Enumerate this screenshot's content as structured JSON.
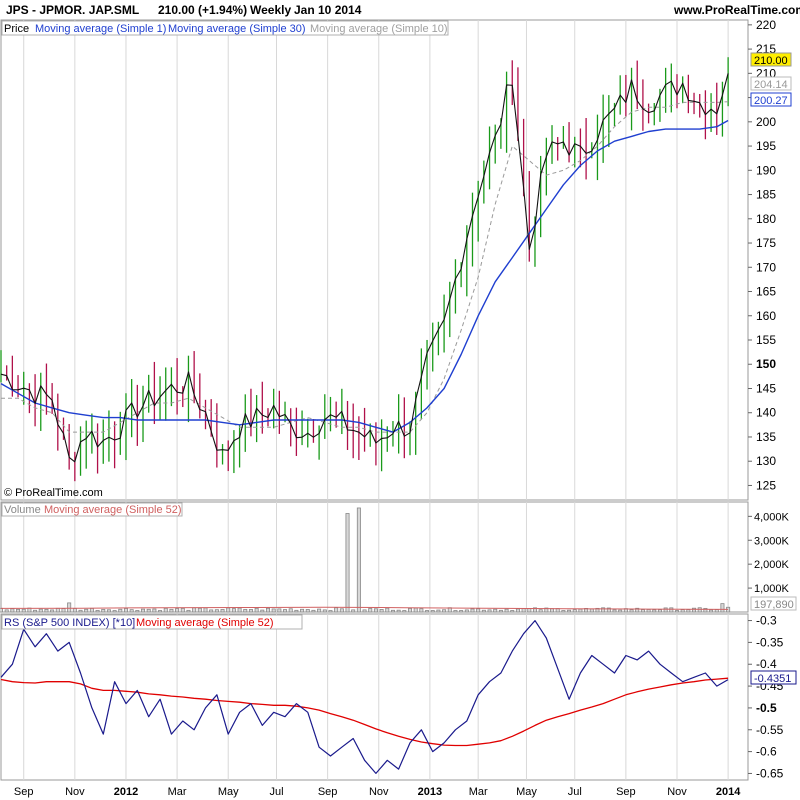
{
  "header": {
    "title": "JPS - JPMOR. JAP.SML",
    "price_change": "210.00 (+1.94%)",
    "period": "Weekly",
    "date": "Jan 10 2014",
    "site": "www.ProRealTime.com",
    "copyright": "© ProRealTime.com"
  },
  "colors": {
    "up_bar": "#1a9a1a",
    "down_bar": "#b0104a",
    "close_line": "#111111",
    "ma30": "#1f3fd0",
    "ma10": "#9a9a9a",
    "volume": "#888888",
    "ma52_volume": "#d06060",
    "rs_line": "#1a1a8c",
    "rs_ma52": "#e00000",
    "grid": "#d8d8d8"
  },
  "price_panel": {
    "legend": [
      "Price",
      "Moving average (Simple 1)",
      "Moving average (Simple 30)",
      "Moving average (Simple 10)"
    ],
    "y_ticks": [
      "125",
      "130",
      "135",
      "140",
      "145",
      "150",
      "155",
      "160",
      "165",
      "170",
      "175",
      "180",
      "185",
      "190",
      "195",
      "200",
      "205",
      "210",
      "215",
      "220"
    ],
    "labels": {
      "last": "210.00",
      "ma10": "204.14",
      "ma30": "200.27"
    }
  },
  "volume_panel": {
    "legend": [
      "Volume",
      "Moving average (Simple 52)"
    ],
    "y_ticks": [
      "1,000K",
      "2,000K",
      "3,000K",
      "4,000K"
    ],
    "labels": {
      "last": "197,890"
    }
  },
  "rs_panel": {
    "legend": [
      "RS (S&P 500 INDEX) [*10]",
      "Moving average (Simple 52)"
    ],
    "y_ticks": [
      "-0.3",
      "-0.35",
      "-0.4",
      "-0.45",
      "-0.5",
      "-0.55",
      "-0.6",
      "-0.65"
    ],
    "labels": {
      "last": "-0.4351"
    }
  },
  "x_axis": {
    "labels": [
      {
        "text": "Sep",
        "x": 4.0,
        "bold": false
      },
      {
        "text": "Nov",
        "x": 13.0,
        "bold": false
      },
      {
        "text": "2012",
        "x": 22.0,
        "bold": true
      },
      {
        "text": "Mar",
        "x": 31.0,
        "bold": false
      },
      {
        "text": "May",
        "x": 40.0,
        "bold": false
      },
      {
        "text": "Jul",
        "x": 48.5,
        "bold": false
      },
      {
        "text": "Sep",
        "x": 57.5,
        "bold": false
      },
      {
        "text": "Nov",
        "x": 66.5,
        "bold": false
      },
      {
        "text": "2013",
        "x": 75.5,
        "bold": true
      },
      {
        "text": "Mar",
        "x": 84.0,
        "bold": false
      },
      {
        "text": "May",
        "x": 92.5,
        "bold": false
      },
      {
        "text": "Jul",
        "x": 101.0,
        "bold": false
      },
      {
        "text": "Sep",
        "x": 110.0,
        "bold": false
      },
      {
        "text": "Nov",
        "x": 119.0,
        "bold": false
      },
      {
        "text": "2014",
        "x": 128.0,
        "bold": true
      }
    ]
  },
  "chart_data": [
    {
      "type": "line",
      "name": "price",
      "ylim": [
        122,
        221
      ],
      "xlim": [
        0,
        131.5
      ],
      "x": [
        0,
        3,
        6,
        9,
        12,
        15,
        18,
        21,
        24,
        27,
        30,
        33,
        36,
        39,
        42,
        45,
        48,
        51,
        54,
        57,
        60,
        63,
        66,
        69,
        72,
        75,
        78,
        81,
        84,
        87,
        90,
        93,
        96,
        99,
        102,
        105,
        108,
        111,
        114,
        117,
        120,
        123,
        126,
        128
      ],
      "series": [
        {
          "name": "Moving average (Simple 1)",
          "values": [
            148,
            146,
            144,
            143,
            130,
            136,
            134,
            137,
            141,
            143,
            145,
            146,
            140,
            131,
            137,
            139,
            141,
            137,
            136,
            139,
            138,
            136,
            134,
            137,
            137,
            150,
            158,
            172,
            186,
            196,
            210,
            174,
            193,
            196,
            193,
            198,
            202,
            207,
            204,
            206,
            208,
            204,
            203,
            210
          ]
        },
        {
          "name": "Moving average (Simple 30)",
          "values": [
            146,
            144,
            142,
            141,
            140,
            139.5,
            139,
            139,
            138.5,
            138.5,
            138.5,
            138.5,
            138.5,
            138,
            137.5,
            138,
            138.5,
            138.5,
            138.5,
            138.5,
            138.5,
            138,
            137,
            136,
            138,
            141,
            145,
            152,
            160,
            167,
            172,
            177,
            182,
            187,
            191,
            194,
            196,
            197,
            198,
            198.5,
            198.5,
            198.5,
            199,
            200.27
          ]
        },
        {
          "name": "Moving average (Simple 10)",
          "values": [
            143,
            143,
            141,
            140,
            136,
            136,
            136,
            138,
            140,
            142,
            142,
            143,
            141,
            139,
            137,
            137,
            137,
            138,
            139,
            138,
            137,
            137,
            136,
            136,
            136,
            140,
            147,
            157,
            168,
            183,
            195,
            192,
            189,
            190,
            192,
            195,
            199,
            202,
            203,
            203,
            204,
            204,
            204,
            204.14
          ]
        }
      ]
    },
    {
      "type": "bar",
      "name": "volume",
      "ylim": [
        0,
        4600
      ],
      "spikes": [
        {
          "x": 12,
          "value": 380
        },
        {
          "x": 61,
          "value": 4120
        },
        {
          "x": 63,
          "value": 4350
        },
        {
          "x": 127,
          "value": 350
        },
        {
          "x": 128,
          "value": 197.89
        }
      ],
      "base_level": 120,
      "series": [
        {
          "name": "Moving average (Simple 52)",
          "values": [
            150,
            160,
            180,
            190,
            200,
            180,
            160,
            140,
            120,
            110
          ]
        }
      ]
    },
    {
      "type": "line",
      "name": "rs",
      "ylim": [
        -0.665,
        -0.285
      ],
      "x": [
        0,
        2,
        4,
        6,
        8,
        10,
        12,
        14,
        16,
        18,
        20,
        22,
        24,
        26,
        28,
        30,
        32,
        34,
        36,
        38,
        40,
        42,
        44,
        46,
        48,
        50,
        52,
        54,
        56,
        58,
        60,
        62,
        64,
        66,
        68,
        70,
        72,
        74,
        76,
        78,
        80,
        82,
        84,
        86,
        88,
        90,
        92,
        94,
        96,
        98,
        100,
        102,
        104,
        106,
        108,
        110,
        112,
        114,
        116,
        118,
        120,
        122,
        124,
        126,
        128
      ],
      "series": [
        {
          "name": "RS (S&P 500 INDEX) [*10]",
          "values": [
            -0.43,
            -0.4,
            -0.32,
            -0.36,
            -0.33,
            -0.37,
            -0.35,
            -0.42,
            -0.5,
            -0.56,
            -0.44,
            -0.49,
            -0.46,
            -0.52,
            -0.48,
            -0.56,
            -0.53,
            -0.55,
            -0.5,
            -0.47,
            -0.56,
            -0.51,
            -0.49,
            -0.54,
            -0.51,
            -0.52,
            -0.49,
            -0.51,
            -0.59,
            -0.61,
            -0.59,
            -0.57,
            -0.62,
            -0.65,
            -0.62,
            -0.64,
            -0.58,
            -0.55,
            -0.6,
            -0.58,
            -0.55,
            -0.53,
            -0.47,
            -0.44,
            -0.42,
            -0.37,
            -0.33,
            -0.3,
            -0.34,
            -0.41,
            -0.48,
            -0.42,
            -0.38,
            -0.4,
            -0.42,
            -0.38,
            -0.39,
            -0.37,
            -0.4,
            -0.42,
            -0.44,
            -0.43,
            -0.42,
            -0.45,
            -0.4351
          ]
        },
        {
          "name": "Moving average (Simple 52)",
          "values": [
            -0.435,
            -0.44,
            -0.442,
            -0.443,
            -0.44,
            -0.44,
            -0.44,
            -0.445,
            -0.455,
            -0.46,
            -0.46,
            -0.462,
            -0.464,
            -0.468,
            -0.47,
            -0.473,
            -0.475,
            -0.478,
            -0.48,
            -0.483,
            -0.485,
            -0.487,
            -0.49,
            -0.492,
            -0.494,
            -0.494,
            -0.496,
            -0.5,
            -0.505,
            -0.513,
            -0.52,
            -0.528,
            -0.538,
            -0.548,
            -0.557,
            -0.565,
            -0.572,
            -0.578,
            -0.582,
            -0.585,
            -0.586,
            -0.586,
            -0.583,
            -0.58,
            -0.575,
            -0.565,
            -0.553,
            -0.54,
            -0.528,
            -0.52,
            -0.513,
            -0.505,
            -0.498,
            -0.49,
            -0.48,
            -0.47,
            -0.463,
            -0.457,
            -0.452,
            -0.447,
            -0.443,
            -0.44,
            -0.436,
            -0.434,
            -0.432
          ]
        }
      ]
    }
  ]
}
